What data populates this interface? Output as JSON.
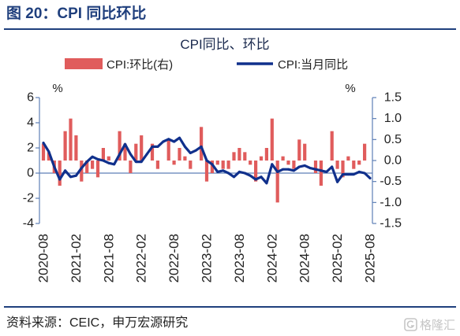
{
  "figure": {
    "title": "图 20：CPI 同比环比"
  },
  "chart_data": {
    "type": "bar",
    "title": "CPI同比、环比",
    "x_tick_labels": [
      "2020-08",
      "2021-02",
      "2021-08",
      "2022-02",
      "2022-08",
      "2023-02",
      "2023-08",
      "2024-02",
      "2024-08",
      "2025-02",
      "2025-08"
    ],
    "series": [
      {
        "name": "CPI:环比(右)",
        "type": "bar",
        "axis": "right",
        "color": "#e05c5c",
        "values": [
          0.4,
          0.2,
          -0.3,
          -0.6,
          0.7,
          1.0,
          0.6,
          -0.5,
          -0.3,
          -0.2,
          -0.4,
          0.3,
          0.1,
          0.0,
          0.7,
          0.4,
          -0.3,
          0.4,
          0.6,
          0.0,
          0.4,
          -0.2,
          0.0,
          0.5,
          -0.1,
          0.3,
          0.1,
          -0.2,
          0.0,
          0.8,
          -0.5,
          -0.3,
          -0.1,
          -0.2,
          -0.2,
          0.2,
          0.3,
          0.2,
          -0.1,
          -0.5,
          0.1,
          0.3,
          1.0,
          -1.0,
          0.1,
          -0.1,
          -0.2,
          0.5,
          0.4,
          0.0,
          -0.3,
          -0.6,
          0.0,
          0.7,
          -0.2,
          -0.4,
          0.1,
          -0.2,
          -0.1,
          0.4,
          0.0
        ]
      },
      {
        "name": "CPI:当月同比",
        "type": "line",
        "axis": "left",
        "color": "#10308c",
        "values": [
          2.4,
          1.7,
          0.5,
          -0.5,
          0.2,
          -0.3,
          -0.2,
          0.4,
          0.9,
          1.3,
          1.1,
          1.0,
          0.8,
          0.7,
          1.5,
          2.3,
          1.5,
          0.9,
          0.9,
          1.5,
          2.1,
          2.1,
          2.5,
          2.7,
          2.5,
          2.8,
          2.1,
          1.6,
          1.8,
          2.1,
          1.0,
          0.7,
          0.1,
          0.2,
          0.0,
          -0.3,
          0.1,
          0.0,
          -0.2,
          -0.5,
          -0.3,
          -0.8,
          0.7,
          0.1,
          0.3,
          0.3,
          0.2,
          0.5,
          0.6,
          0.4,
          0.3,
          0.2,
          0.1,
          0.5,
          -0.7,
          -0.1,
          -0.1,
          -0.1,
          0.1,
          0.0,
          -0.4
        ]
      }
    ],
    "y_left": {
      "label": "%",
      "lim": [
        -4,
        6
      ],
      "tick_labels": [
        "6",
        "4",
        "2",
        "0",
        "-2",
        "-4"
      ]
    },
    "y_right": {
      "label": "%",
      "lim": [
        -1.5,
        1.5
      ],
      "tick_labels": [
        "1.5",
        "1.0",
        "0.5",
        "0.0",
        "-0.5",
        "-1.0",
        "-1.5"
      ]
    },
    "legend": "top",
    "grid": false
  },
  "footer": {
    "source": "资料来源：CEIC，申万宏源研究",
    "watermark": "格隆汇"
  },
  "colors": {
    "accent": "#1f3f7d",
    "axis": "#5d7fb6"
  }
}
